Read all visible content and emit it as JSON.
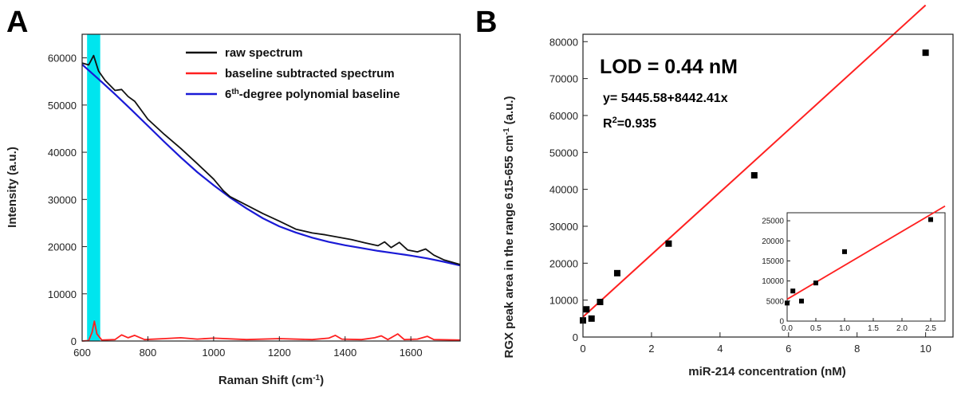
{
  "chart_data": [
    {
      "panel": "A",
      "type": "line",
      "title": "",
      "xlabel": "Raman Shift (cm-1)",
      "xlabel_parts": [
        "Raman Shift (cm",
        "-1",
        ")"
      ],
      "ylabel": "Intensity (a.u.)",
      "xlim": [
        600,
        1750
      ],
      "ylim": [
        0,
        65000
      ],
      "xticks": [
        600,
        800,
        1000,
        1200,
        1400,
        1600
      ],
      "yticks": [
        0,
        10000,
        20000,
        30000,
        40000,
        50000,
        60000
      ],
      "highlight_band": {
        "from": 615,
        "to": 655,
        "color": "#00e5ee"
      },
      "legend": [
        {
          "label": "raw spectrum",
          "color": "#111111"
        },
        {
          "label": "baseline subtracted spectrum",
          "color": "#ff2020"
        },
        {
          "label_parts": [
            "6",
            "th",
            "-degree polynomial baseline"
          ],
          "label": "6th-degree polynomial baseline",
          "color": "#1a1ad6"
        }
      ],
      "series": [
        {
          "name": "6th-degree polynomial baseline",
          "color": "#1a1ad6",
          "x": [
            600,
            650,
            700,
            750,
            800,
            850,
            900,
            950,
            1000,
            1050,
            1100,
            1150,
            1200,
            1250,
            1300,
            1350,
            1400,
            1450,
            1500,
            1550,
            1600,
            1650,
            1700,
            1750
          ],
          "y": [
            58600,
            55500,
            52300,
            49000,
            45600,
            42200,
            38900,
            35800,
            33000,
            30400,
            28100,
            26000,
            24300,
            23000,
            21900,
            21000,
            20300,
            19700,
            19100,
            18600,
            18100,
            17500,
            16800,
            16000
          ]
        },
        {
          "name": "raw spectrum",
          "color": "#111111",
          "x": [
            600,
            620,
            635,
            650,
            670,
            700,
            720,
            740,
            760,
            800,
            850,
            900,
            950,
            1000,
            1030,
            1050,
            1100,
            1150,
            1200,
            1250,
            1300,
            1340,
            1380,
            1420,
            1460,
            1500,
            1520,
            1540,
            1565,
            1590,
            1620,
            1645,
            1670,
            1700,
            1750
          ],
          "y": [
            58900,
            58500,
            60500,
            57200,
            55200,
            53100,
            53300,
            51800,
            50800,
            47000,
            43800,
            40800,
            37600,
            34300,
            31800,
            30600,
            28800,
            27000,
            25400,
            23700,
            22900,
            22500,
            22000,
            21500,
            20800,
            20200,
            21000,
            19800,
            20900,
            19300,
            18900,
            19500,
            18200,
            17200,
            16200
          ]
        },
        {
          "name": "baseline subtracted spectrum",
          "color": "#ff2020",
          "x": [
            600,
            620,
            630,
            637,
            645,
            660,
            700,
            720,
            740,
            760,
            790,
            850,
            900,
            950,
            1000,
            1100,
            1200,
            1300,
            1350,
            1370,
            1390,
            1450,
            1490,
            1510,
            1530,
            1560,
            1580,
            1620,
            1650,
            1670,
            1750
          ],
          "y": [
            0,
            100,
            1800,
            4200,
            1500,
            200,
            300,
            1300,
            700,
            1200,
            300,
            500,
            700,
            400,
            600,
            300,
            500,
            300,
            600,
            1200,
            400,
            300,
            700,
            1100,
            300,
            1500,
            300,
            400,
            1000,
            300,
            200
          ]
        }
      ]
    },
    {
      "panel": "B",
      "type": "scatter",
      "title": "",
      "xlabel": "miR-214 concentration (nM)",
      "ylabel": "RGX peak area in the range 615-655 cm-1 (a.u.)",
      "ylabel_parts": [
        "RGX peak area in the range 615-655 cm",
        "-1",
        " (a.u.)"
      ],
      "xlim": [
        0,
        10.8
      ],
      "ylim": [
        0,
        82000
      ],
      "xticks": [
        0,
        2,
        4,
        6,
        8,
        10
      ],
      "yticks": [
        0,
        10000,
        20000,
        30000,
        40000,
        50000,
        60000,
        70000,
        80000
      ],
      "points": {
        "x": [
          0,
          0.1,
          0.25,
          0.5,
          1,
          2.5,
          5,
          10
        ],
        "y": [
          4500,
          7500,
          5000,
          9500,
          17300,
          25300,
          43800,
          77000
        ]
      },
      "fit": {
        "intercept": 5445.58,
        "slope": 8442.41,
        "x_range": [
          0,
          10
        ],
        "color": "#ff2020"
      },
      "annotations": {
        "lod": "LOD = 0.44 nM",
        "equation": "y= 5445.58+8442.41x",
        "r2_prefix": "R",
        "r2_sup": "2",
        "r2_value": "=0.935"
      },
      "inset": {
        "xlim": [
          0,
          2.75
        ],
        "ylim": [
          0,
          27000
        ],
        "xticks": [
          0.0,
          0.5,
          1.0,
          1.5,
          2.0,
          2.5
        ],
        "xtick_labels": [
          "0.0",
          "0.5",
          "1.0",
          "1.5",
          "2.0",
          "2.5"
        ],
        "yticks": [
          0,
          5000,
          10000,
          15000,
          20000,
          25000
        ],
        "points": {
          "x": [
            0,
            0.1,
            0.25,
            0.5,
            1,
            2.5
          ],
          "y": [
            4500,
            7500,
            5000,
            9500,
            17300,
            25300
          ]
        }
      }
    }
  ]
}
